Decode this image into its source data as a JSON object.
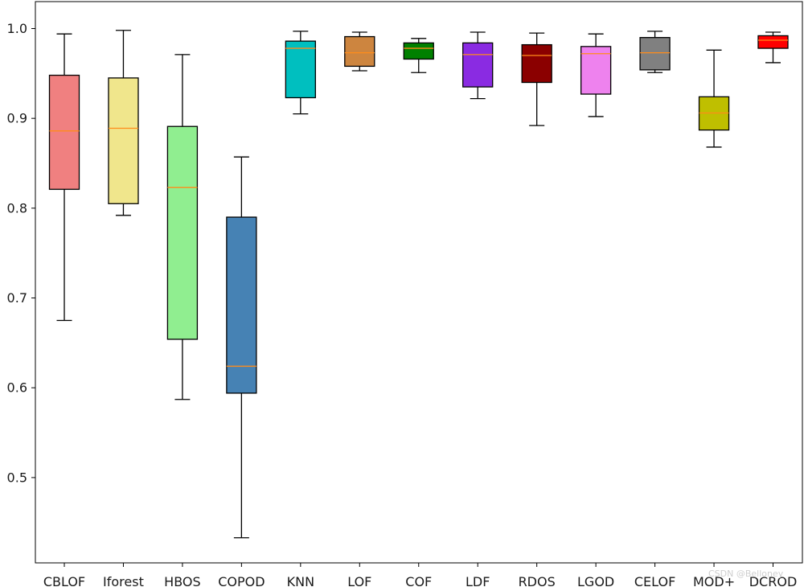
{
  "watermark": "CSDN @Belloney",
  "chart_data": {
    "type": "box",
    "title": "",
    "xlabel": "",
    "ylabel": "",
    "ylim": [
      0.405,
      1.03
    ],
    "yticks": [
      0.5,
      0.6,
      0.7,
      0.8,
      0.9,
      1.0
    ],
    "ytick_labels": [
      "0.5",
      "0.6",
      "0.7",
      "0.8",
      "0.9",
      "1.0"
    ],
    "grid": false,
    "legend": "none",
    "median_color": "#ff8c1a",
    "categories": [
      "CBLOF",
      "Iforest",
      "HBOS",
      "COPOD",
      "KNN",
      "LOF",
      "COF",
      "LDF",
      "RDOS",
      "LGOD",
      "CELOF",
      "MOD+",
      "DCROD"
    ],
    "boxes": [
      {
        "label": "CBLOF",
        "color": "#f08080",
        "whislo": 0.675,
        "q1": 0.821,
        "med": 0.886,
        "q3": 0.948,
        "whishi": 0.994
      },
      {
        "label": "Iforest",
        "color": "#f0e68c",
        "whislo": 0.792,
        "q1": 0.805,
        "med": 0.889,
        "q3": 0.945,
        "whishi": 0.998
      },
      {
        "label": "HBOS",
        "color": "#90ee90",
        "whislo": 0.587,
        "q1": 0.654,
        "med": 0.823,
        "q3": 0.891,
        "whishi": 0.971
      },
      {
        "label": "COPOD",
        "color": "#4682b4",
        "whislo": 0.433,
        "q1": 0.594,
        "med": 0.624,
        "q3": 0.79,
        "whishi": 0.857
      },
      {
        "label": "KNN",
        "color": "#00bfbf",
        "whislo": 0.905,
        "q1": 0.923,
        "med": 0.978,
        "q3": 0.986,
        "whishi": 0.997
      },
      {
        "label": "LOF",
        "color": "#cd853f",
        "whislo": 0.953,
        "q1": 0.958,
        "med": 0.973,
        "q3": 0.991,
        "whishi": 0.996
      },
      {
        "label": "COF",
        "color": "#008000",
        "whislo": 0.951,
        "q1": 0.966,
        "med": 0.978,
        "q3": 0.984,
        "whishi": 0.989
      },
      {
        "label": "LDF",
        "color": "#8a2be2",
        "whislo": 0.922,
        "q1": 0.935,
        "med": 0.971,
        "q3": 0.984,
        "whishi": 0.996
      },
      {
        "label": "RDOS",
        "color": "#8b0000",
        "whislo": 0.892,
        "q1": 0.94,
        "med": 0.97,
        "q3": 0.982,
        "whishi": 0.995
      },
      {
        "label": "LGOD",
        "color": "#ee82ee",
        "whislo": 0.902,
        "q1": 0.927,
        "med": 0.972,
        "q3": 0.98,
        "whishi": 0.994
      },
      {
        "label": "CELOF",
        "color": "#808080",
        "whislo": 0.951,
        "q1": 0.954,
        "med": 0.973,
        "q3": 0.99,
        "whishi": 0.997
      },
      {
        "label": "MOD+",
        "color": "#bfbf00",
        "whislo": 0.868,
        "q1": 0.887,
        "med": 0.906,
        "q3": 0.924,
        "whishi": 0.976
      },
      {
        "label": "DCROD",
        "color": "#ff0000",
        "whislo": 0.962,
        "q1": 0.978,
        "med": 0.987,
        "q3": 0.992,
        "whishi": 0.996
      }
    ]
  }
}
